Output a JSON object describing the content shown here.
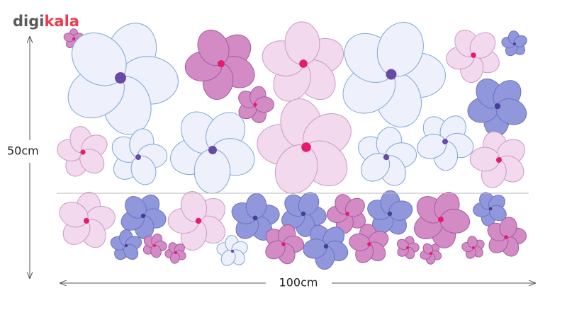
{
  "logo": {
    "prefix": "digi",
    "suffix": "kala"
  },
  "dimensions": {
    "height": "50cm",
    "width": "100cm"
  }
}
